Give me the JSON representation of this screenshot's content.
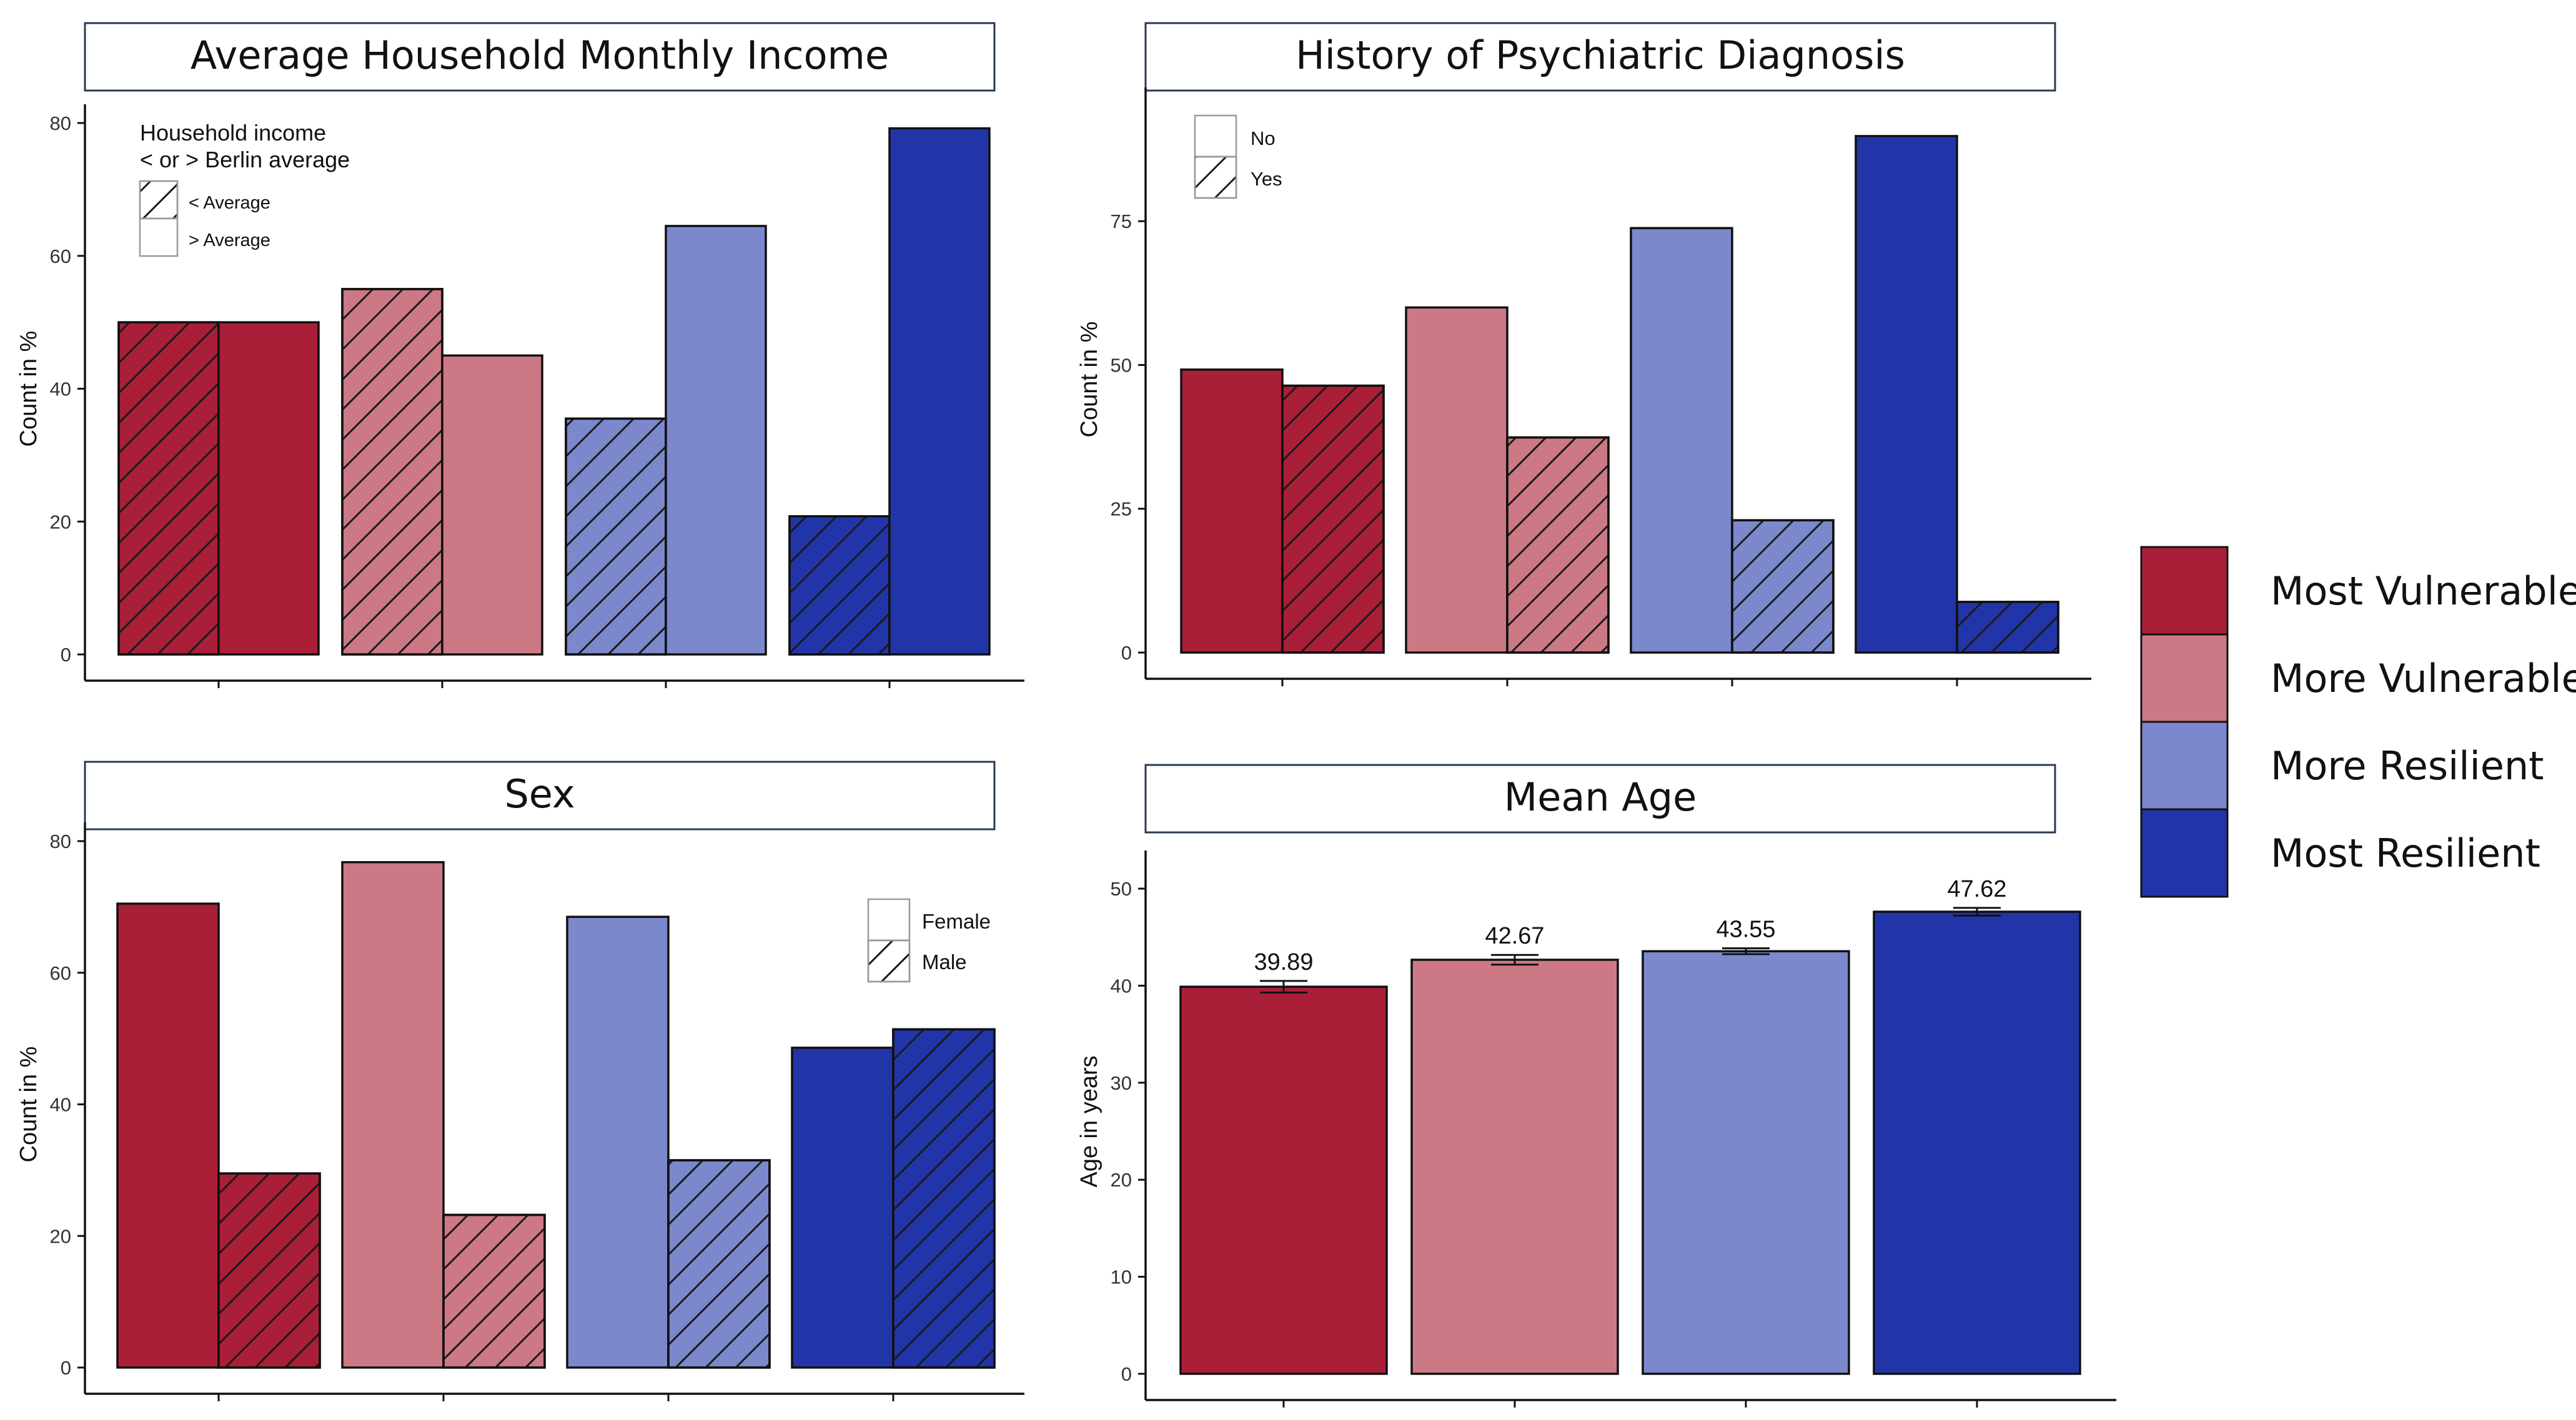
{
  "group_legend": {
    "items": [
      {
        "label": "Most Vulnerable",
        "color": "#a91f38"
      },
      {
        "label": "More Vulnerable",
        "color": "#cc7985"
      },
      {
        "label": "More Resilient",
        "color": "#7c88cc"
      },
      {
        "label": "Most Resilient",
        "color": "#2235a8"
      }
    ]
  },
  "chart_data": [
    {
      "type": "bar",
      "title": "Average Household Monthly Income",
      "xlabel": "",
      "ylabel": "Count in %",
      "ylim": [
        0,
        80
      ],
      "yticks": [
        0,
        20,
        40,
        60,
        80
      ],
      "categories": [
        "Most Vulnerable",
        "More Vulnerable",
        "More Resilient",
        "Most Resilient"
      ],
      "series": [
        {
          "name": "< Average",
          "pattern": "hatch",
          "values": [
            50,
            55,
            35.5,
            20.8
          ]
        },
        {
          "name": "> Average",
          "pattern": "solid",
          "values": [
            50,
            45,
            64.5,
            79.2
          ]
        }
      ],
      "legend": {
        "title_line1": "Household income",
        "title_line2": " < or > Berlin average",
        "position": "top-left"
      }
    },
    {
      "type": "bar",
      "title": "History of Psychiatric Diagnosis",
      "xlabel": "",
      "ylabel": "Count in %",
      "ylim": [
        0,
        95
      ],
      "yticks": [
        0,
        25,
        50,
        75
      ],
      "categories": [
        "Most Vulnerable",
        "More Vulnerable",
        "More Resilient",
        "Most Resilient"
      ],
      "series": [
        {
          "name": "No",
          "pattern": "solid",
          "values": [
            49.2,
            60,
            73.8,
            89.8
          ]
        },
        {
          "name": "Yes",
          "pattern": "hatch",
          "values": [
            46.4,
            37.4,
            23,
            8.8
          ]
        }
      ],
      "legend": {
        "position": "top-left"
      }
    },
    {
      "type": "bar",
      "title": "Sex",
      "xlabel": "",
      "ylabel": "Count in %",
      "ylim": [
        0,
        80
      ],
      "yticks": [
        0,
        20,
        40,
        60,
        80
      ],
      "categories": [
        "Most Vulnerable",
        "More Vulnerable",
        "More Resilient",
        "Most Resilient"
      ],
      "series": [
        {
          "name": "Female",
          "pattern": "solid",
          "values": [
            70.5,
            76.8,
            68.5,
            48.6
          ]
        },
        {
          "name": "Male",
          "pattern": "hatch",
          "values": [
            29.5,
            23.2,
            31.5,
            51.4
          ]
        }
      ],
      "legend": {
        "position": "top-right"
      }
    },
    {
      "type": "bar",
      "title": "Mean Age",
      "xlabel": "",
      "ylabel": "Age in years",
      "ylim": [
        0,
        52
      ],
      "yticks": [
        0,
        10,
        20,
        30,
        40,
        50
      ],
      "categories": [
        "Most Vulnerable",
        "More Vulnerable",
        "More Resilient",
        "Most Resilient"
      ],
      "values": [
        39.89,
        42.67,
        43.55,
        47.62
      ],
      "labels": [
        "39.89",
        "42.67",
        "43.55",
        "47.62"
      ],
      "errors": [
        0.6,
        0.5,
        0.3,
        0.4
      ]
    }
  ]
}
